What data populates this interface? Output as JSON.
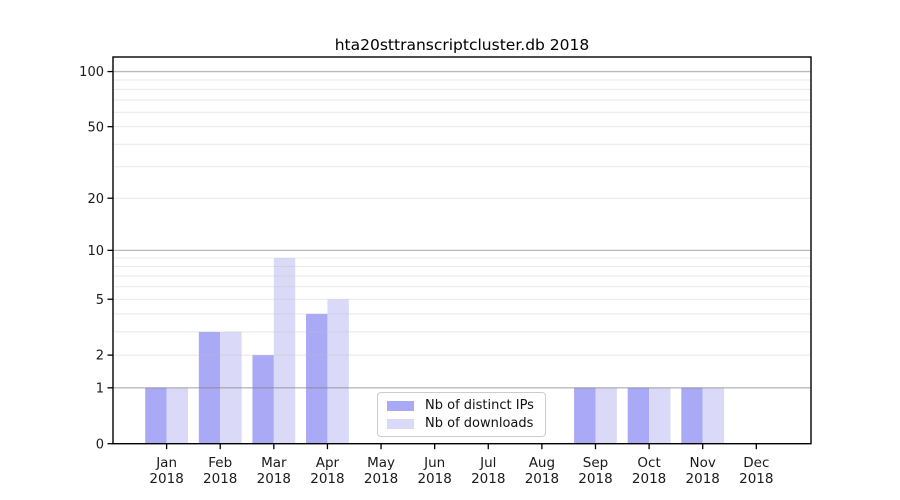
{
  "chart_data": {
    "type": "bar",
    "title": "hta20sttranscriptcluster.db 2018",
    "categories": [
      "Jan",
      "Feb",
      "Mar",
      "Apr",
      "May",
      "Jun",
      "Jul",
      "Aug",
      "Sep",
      "Oct",
      "Nov",
      "Dec"
    ],
    "category_year": "2018",
    "series": [
      {
        "name": "Nb of distinct IPs",
        "color": "#a9a9f6",
        "values": [
          1,
          3,
          2,
          4,
          0,
          0,
          0,
          0,
          1,
          1,
          1,
          0
        ]
      },
      {
        "name": "Nb of downloads",
        "color": "#dadaf8",
        "values": [
          1,
          3,
          9,
          5,
          0,
          0,
          0,
          0,
          1,
          1,
          1,
          0
        ]
      }
    ],
    "y_ticks": [
      0,
      1,
      2,
      5,
      10,
      20,
      50,
      100
    ],
    "y_major_gridlines": [
      1,
      10,
      100
    ],
    "y_minor_gridlines": [
      2,
      3,
      4,
      5,
      6,
      7,
      8,
      9,
      20,
      30,
      40,
      50,
      60,
      70,
      80,
      90
    ],
    "y_scale": "log1p",
    "ylim": [
      0,
      120
    ],
    "xlabel": "",
    "ylabel": "",
    "grid": true,
    "legend_position": "inside-bottom-center"
  },
  "colors": {
    "background": "#ffffff",
    "axis_frame": "#000000",
    "tick_label": "#1a1a1a",
    "major_gridline": "rgba(130,130,130,0.55)",
    "minor_gridline": "rgba(190,190,190,0.35)",
    "bar_distinct_ips": "#a9a9f6",
    "bar_downloads": "#dadaf8"
  }
}
